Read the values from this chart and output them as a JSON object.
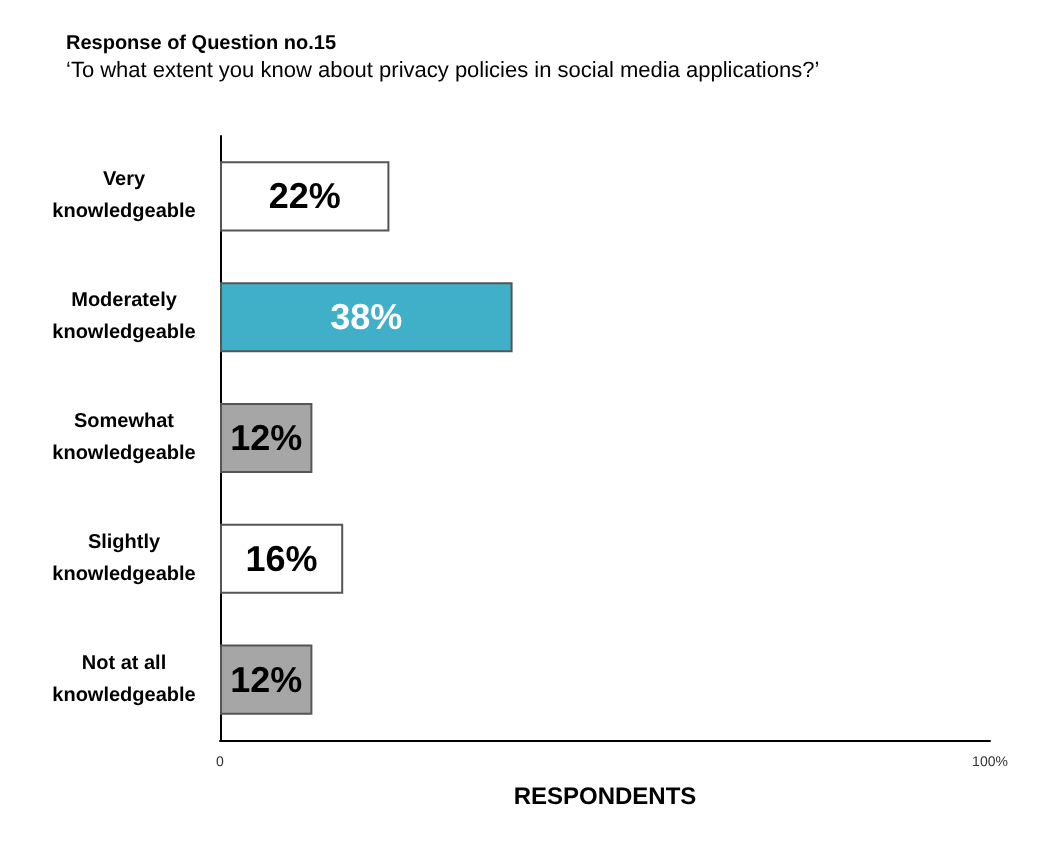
{
  "chart_data": {
    "type": "bar",
    "orientation": "horizontal",
    "title": "Response of Question no.15",
    "subtitle": "‘To what extent you know about privacy policies in social media applications?’",
    "xlabel": "RESPONDENTS",
    "categories": [
      "Very\nknowledgeable",
      "Moderately\nknowledgeable",
      "Somewhat\nknowledgeable",
      "Slightly\nknowledgeable",
      "Not at all\nknowledgeable"
    ],
    "values": [
      22,
      38,
      12,
      16,
      12
    ],
    "value_labels": [
      "22%",
      "38%",
      "12%",
      "16%",
      "12%"
    ],
    "colors": [
      "#ffffff",
      "#3fb0c8",
      "#a6a6a6",
      "#ffffff",
      "#a6a6a6"
    ],
    "xlim": [
      0,
      100
    ],
    "xticks": [
      0,
      {
        "value": 100,
        "label": "100%"
      }
    ]
  }
}
